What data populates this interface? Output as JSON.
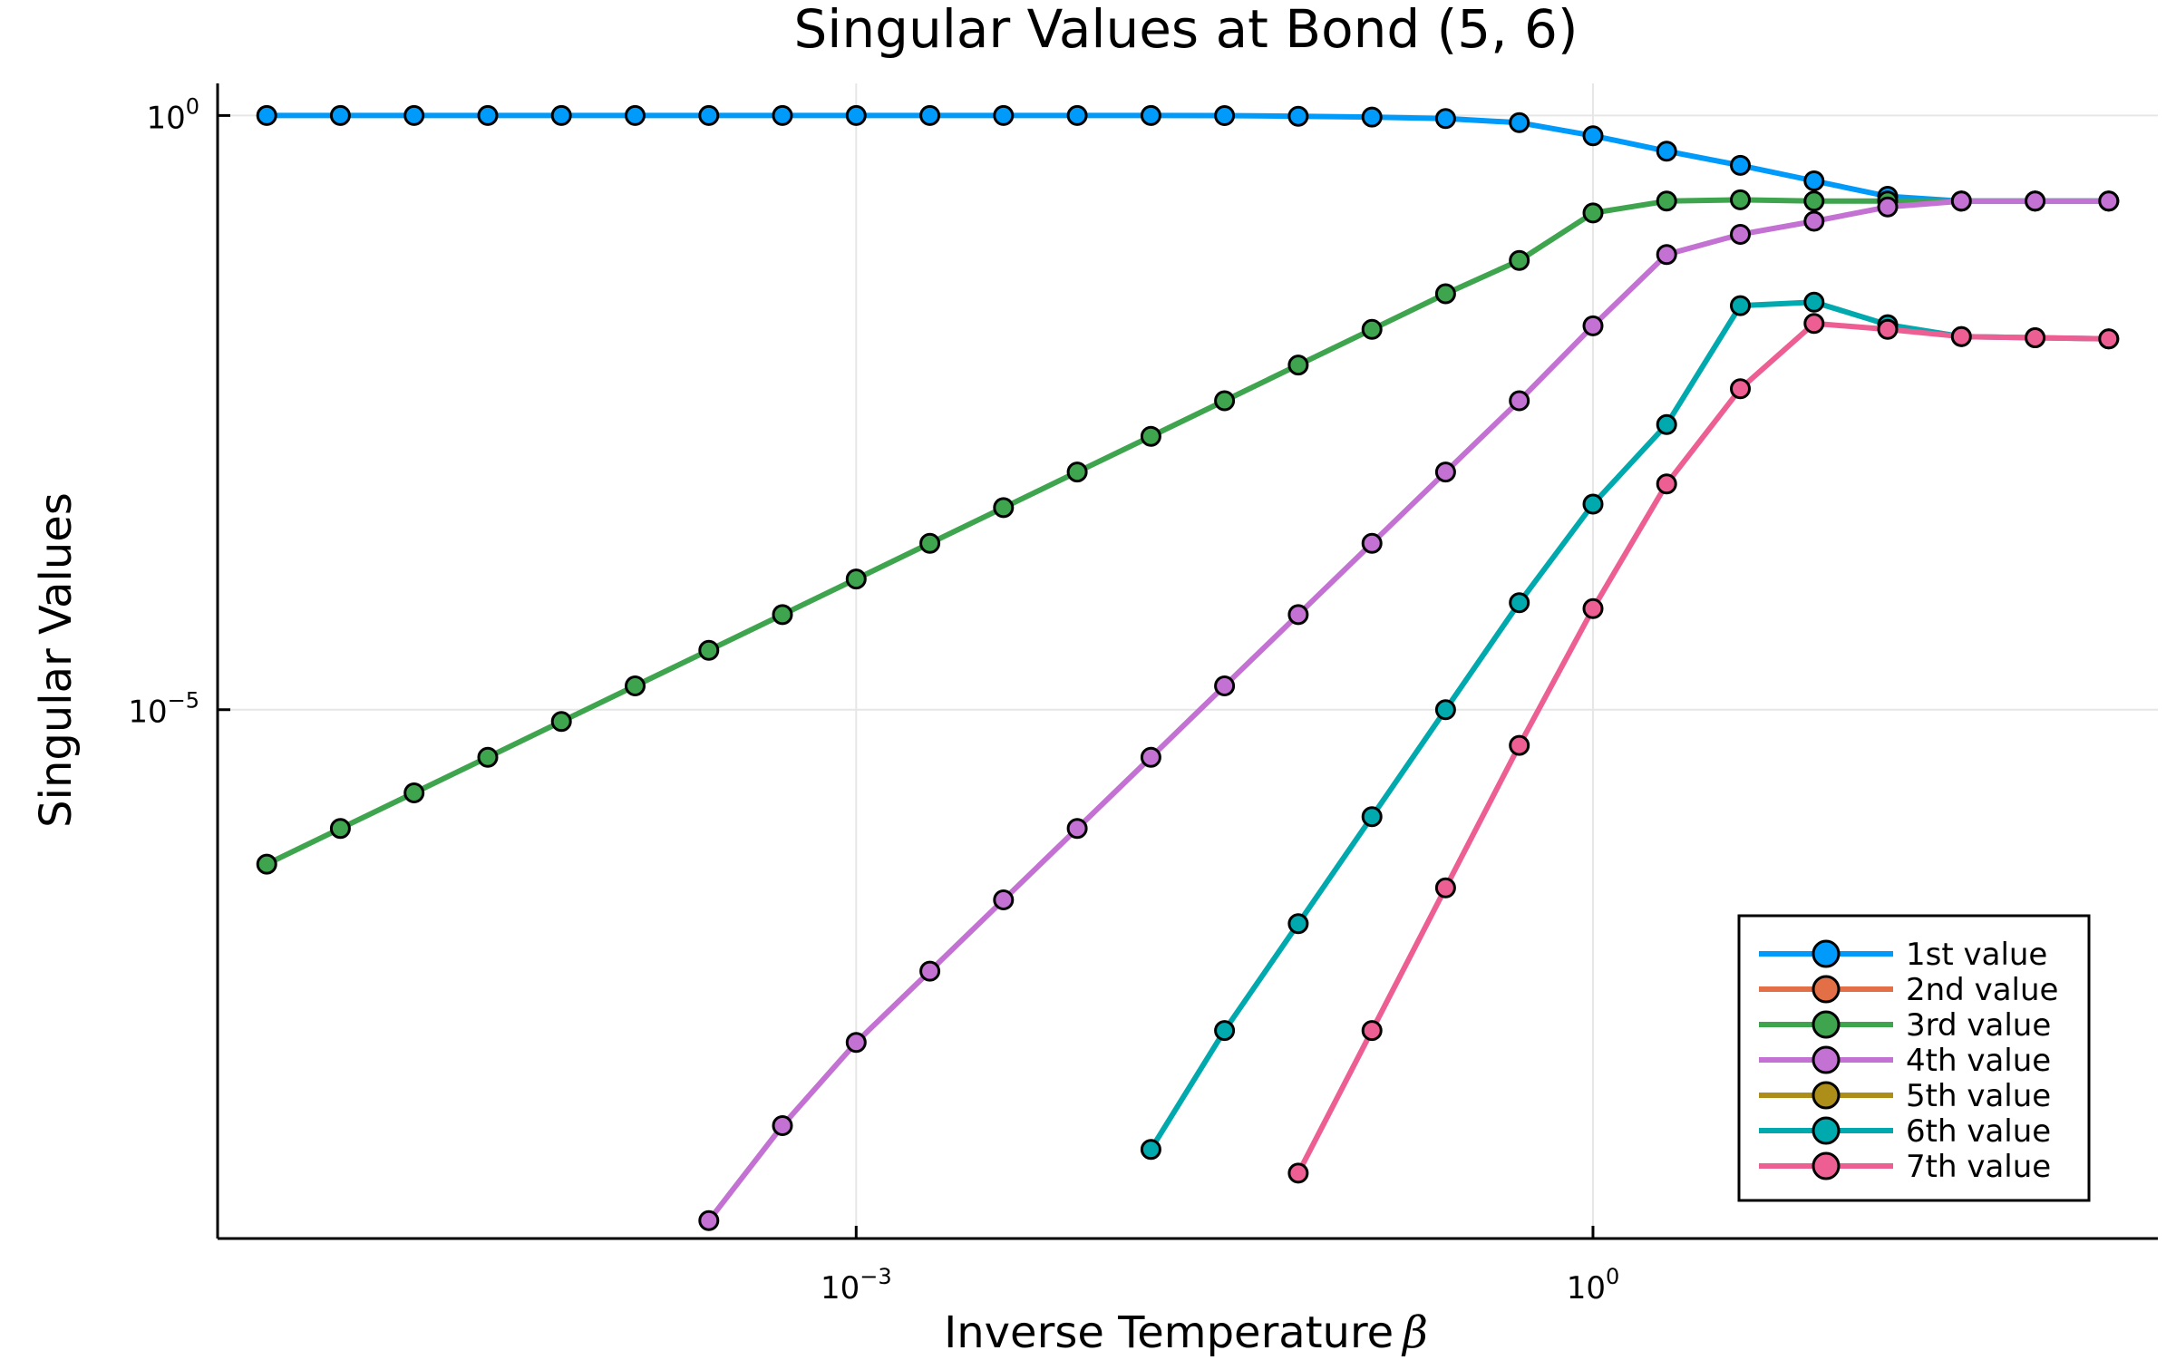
{
  "chart_data": {
    "type": "line",
    "title": "Singular Values at Bond (5, 6)",
    "xlabel": "Inverse Temperature",
    "xlabel_symbol": "β",
    "ylabel": "Singular Values",
    "x_scale": "log10",
    "y_scale": "log10",
    "xlim_log10": [
      -5.6,
      2.3
    ],
    "ylim_log10": [
      -9.45,
      0.27
    ],
    "x_ticks": [
      {
        "value_log10": -3,
        "label_base": "10",
        "label_exp": "−3"
      },
      {
        "value_log10": 0,
        "label_base": "10",
        "label_exp": "0"
      }
    ],
    "y_ticks": [
      {
        "value_log10": 0,
        "label_base": "10",
        "label_exp": "0"
      },
      {
        "value_log10": -5,
        "label_base": "10",
        "label_exp": "−5"
      }
    ],
    "grid": true,
    "legend_position": "bottom-right",
    "x_log10": [
      -5.4,
      -5.1,
      -4.8,
      -4.5,
      -4.2,
      -3.9,
      -3.6,
      -3.3,
      -3.0,
      -2.7,
      -2.4,
      -2.1,
      -1.8,
      -1.5,
      -1.2,
      -0.9,
      -0.6,
      -0.3,
      0.0,
      0.3,
      0.6,
      0.9,
      1.2,
      1.5,
      1.8,
      2.1
    ],
    "series": [
      {
        "name": "1st value",
        "color": "#009AFA",
        "y_log10": [
          0,
          0,
          0,
          0,
          0,
          0,
          0,
          0,
          0,
          0,
          0,
          0,
          0,
          -0.001,
          -0.006,
          -0.013,
          -0.026,
          -0.06,
          -0.17,
          -0.3,
          -0.42,
          -0.55,
          -0.68,
          -0.72,
          -0.72,
          -0.72
        ]
      },
      {
        "name": "2nd value",
        "color": "#E36F47",
        "y_log10": []
      },
      {
        "name": "3rd value",
        "color": "#3EA44E",
        "y_log10": [
          -6.3,
          -6.0,
          -5.7,
          -5.4,
          -5.1,
          -4.8,
          -4.5,
          -4.2,
          -3.9,
          -3.6,
          -3.3,
          -3.0,
          -2.7,
          -2.4,
          -2.1,
          -1.8,
          -1.5,
          -1.22,
          -0.82,
          -0.72,
          -0.71,
          -0.72,
          -0.72,
          -0.72,
          -0.72,
          -0.72
        ]
      },
      {
        "name": "4th value",
        "color": "#C371D2",
        "y_log10": [
          null,
          null,
          null,
          null,
          null,
          null,
          -9.3,
          -8.5,
          -7.8,
          -7.2,
          -6.6,
          -6.0,
          -5.4,
          -4.8,
          -4.2,
          -3.6,
          -3.0,
          -2.4,
          -1.77,
          -1.17,
          -1.0,
          -0.89,
          -0.77,
          -0.72,
          -0.72,
          -0.72
        ]
      },
      {
        "name": "5th value",
        "color": "#AC8E18",
        "y_log10": []
      },
      {
        "name": "6th value",
        "color": "#00A9AD",
        "y_log10": [
          null,
          null,
          null,
          null,
          null,
          null,
          null,
          null,
          null,
          null,
          null,
          null,
          -8.7,
          -7.7,
          -6.8,
          -5.9,
          -5.0,
          -4.1,
          -3.27,
          -2.6,
          -1.6,
          -1.57,
          -1.76,
          -1.86,
          -1.87,
          -1.88
        ]
      },
      {
        "name": "7th value",
        "color": "#ED5E93",
        "y_log10": [
          null,
          null,
          null,
          null,
          null,
          null,
          null,
          null,
          null,
          null,
          null,
          null,
          null,
          null,
          -8.9,
          -7.7,
          -6.5,
          -5.3,
          -4.15,
          -3.1,
          -2.3,
          -1.75,
          -1.8,
          -1.86,
          -1.87,
          -1.88
        ]
      }
    ]
  }
}
